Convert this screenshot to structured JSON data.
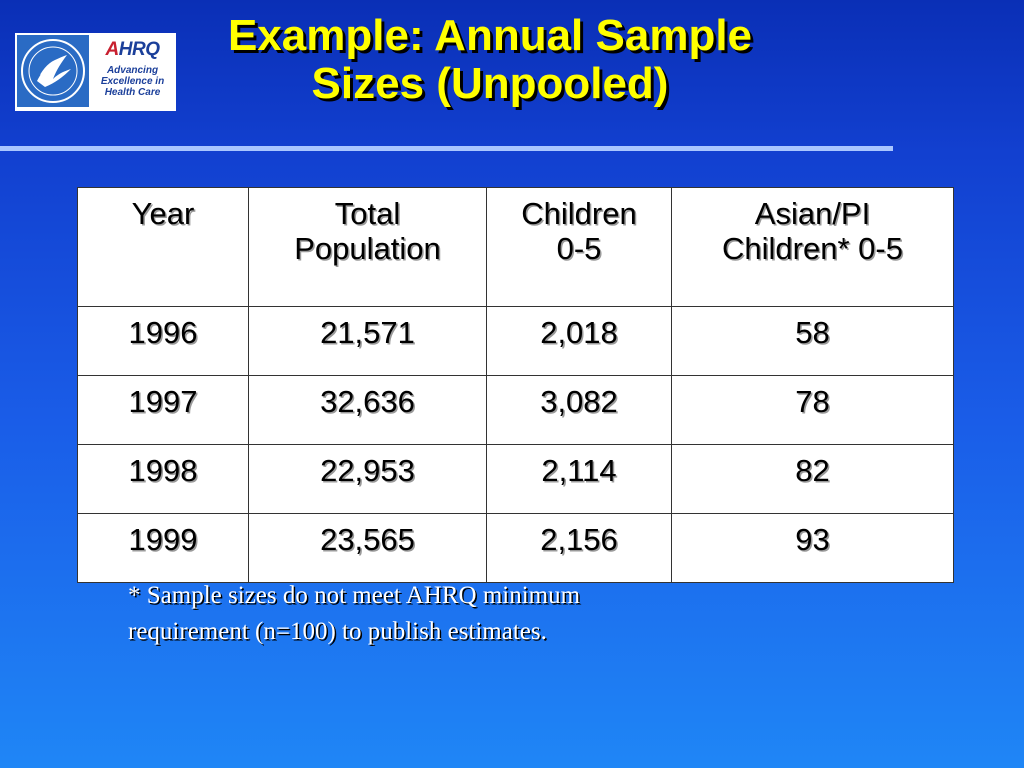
{
  "logos": {
    "hhs_seal": "hhs-eagle-seal",
    "ahrq_wordmark": "AHRQ",
    "ahrq_tagline": [
      "Advancing",
      "Excellence in",
      "Health Care"
    ]
  },
  "title": {
    "line1": "Example:  Annual Sample",
    "line2": "Sizes (Unpooled)"
  },
  "table": {
    "headers": [
      [
        "Year",
        ""
      ],
      [
        "Total",
        "Population"
      ],
      [
        "Children",
        "0-5"
      ],
      [
        "Asian/PI",
        "Children* 0-5"
      ]
    ],
    "rows": [
      [
        "1996",
        "21,571",
        "2,018",
        "58"
      ],
      [
        "1997",
        "32,636",
        "3,082",
        "78"
      ],
      [
        "1998",
        "22,953",
        "2,114",
        "82"
      ],
      [
        "1999",
        "23,565",
        "2,156",
        "93"
      ]
    ]
  },
  "footnote": {
    "line1": "* Sample sizes do not meet AHRQ minimum",
    "line2": "requirement (n=100) to publish estimates."
  },
  "colors": {
    "title": "#ffff00",
    "background_top": "#0a2fb6",
    "background_bottom": "#1f86f6",
    "rule": "#a9c6ff"
  }
}
